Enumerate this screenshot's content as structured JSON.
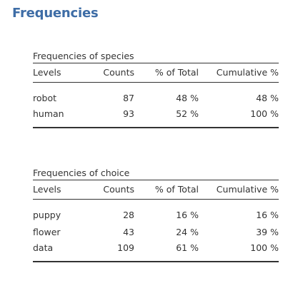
{
  "page": {
    "title": "Frequencies"
  },
  "tables": {
    "species": {
      "title": "Frequencies of species",
      "headers": {
        "levels": "Levels",
        "counts": "Counts",
        "pct_total": "% of Total",
        "cumulative": "Cumulative %"
      },
      "rows": [
        {
          "level": "robot",
          "count": "87",
          "pct": "48 %",
          "cum": "48 %"
        },
        {
          "level": "human",
          "count": "93",
          "pct": "52 %",
          "cum": "100 %"
        }
      ]
    },
    "choice": {
      "title": "Frequencies of choice",
      "headers": {
        "levels": "Levels",
        "counts": "Counts",
        "pct_total": "% of Total",
        "cumulative": "Cumulative %"
      },
      "rows": [
        {
          "level": "puppy",
          "count": "28",
          "pct": "16 %",
          "cum": "16 %"
        },
        {
          "level": "flower",
          "count": "43",
          "pct": "24 %",
          "cum": "39 %"
        },
        {
          "level": "data",
          "count": "109",
          "pct": "61 %",
          "cum": "100 %"
        }
      ]
    }
  },
  "colors": {
    "title": "#3e6da6",
    "text": "#333333",
    "rule": "#333333"
  }
}
